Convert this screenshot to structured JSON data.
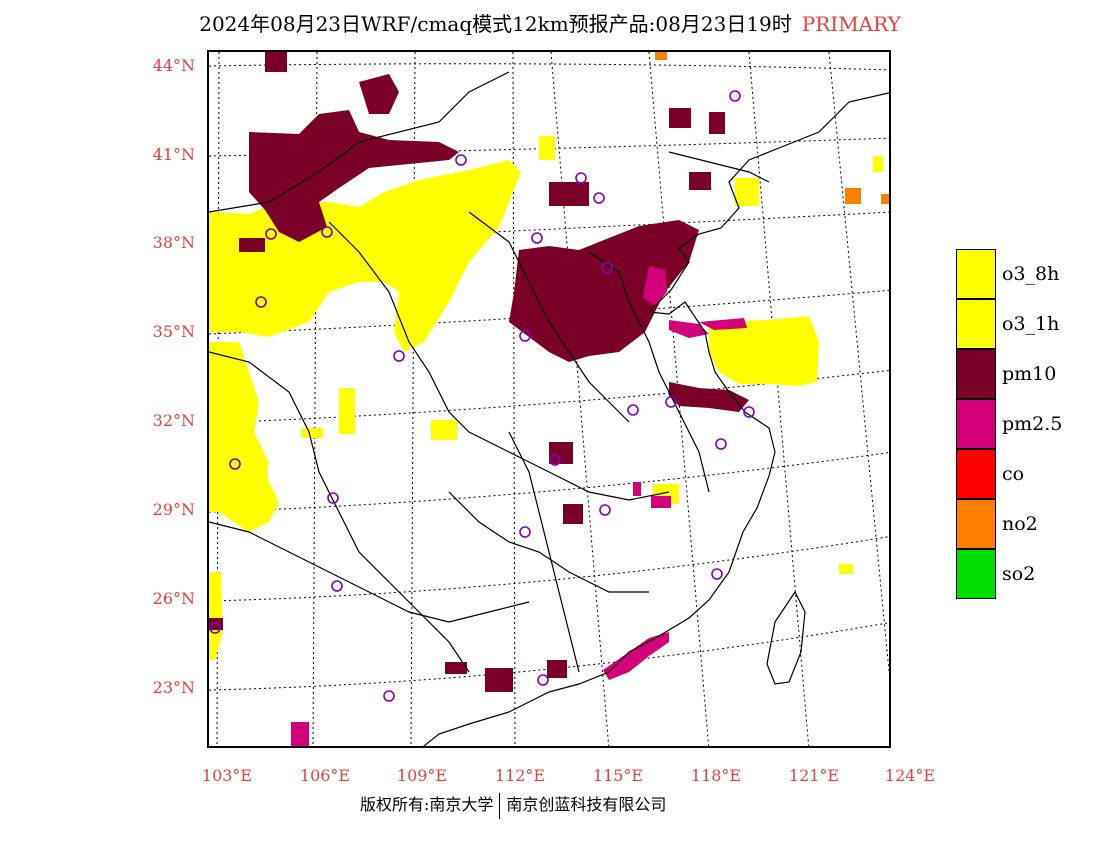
{
  "title": {
    "text": "2024年08月23日WRF/cmaq模式12km预报产品:08月23日19时",
    "tag": "PRIMARY"
  },
  "axes": {
    "lat_labels": [
      "44°N",
      "41°N",
      "38°N",
      "35°N",
      "32°N",
      "29°N",
      "26°N",
      "23°N"
    ],
    "lon_labels": [
      "103°E",
      "106°E",
      "109°E",
      "112°E",
      "115°E",
      "118°E",
      "121°E",
      "124°E"
    ]
  },
  "legend": {
    "items": [
      {
        "label": "o3_8h",
        "color": "#ffff00"
      },
      {
        "label": "o3_1h",
        "color": "#ffff00"
      },
      {
        "label": "pm10",
        "color": "#7a0028"
      },
      {
        "label": "pm2.5",
        "color": "#d4007a"
      },
      {
        "label": "co",
        "color": "#ff0000"
      },
      {
        "label": "no2",
        "color": "#ff8000"
      },
      {
        "label": "so2",
        "color": "#00dd00"
      }
    ]
  },
  "colors": {
    "o3": "#ffff00",
    "pm10": "#7a0028",
    "pm25": "#d4007a",
    "no2": "#ff8000",
    "city_marker": "#8000c0",
    "label": "#e84040"
  },
  "copyright": {
    "left": "版权所有:南京大学",
    "right": "南京创蓝科技有限公司"
  }
}
